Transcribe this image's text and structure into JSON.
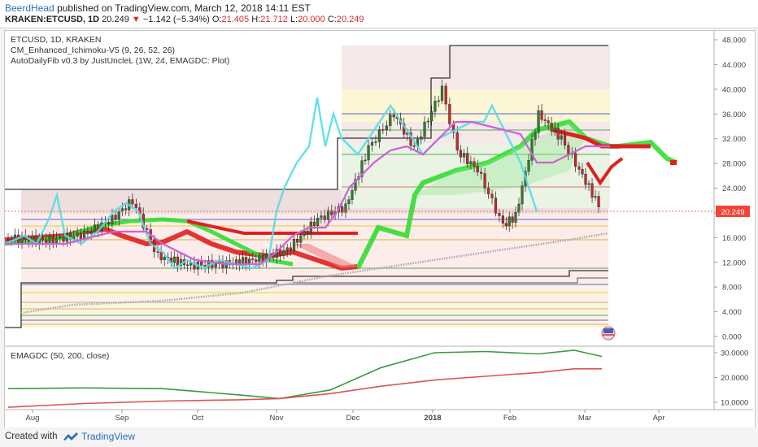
{
  "header": {
    "author": "BeerdHead",
    "published_text": "published on TradingView.com, March 12, 2018 14:11 EST",
    "symbol_line": {
      "symbol": "KRAKEN:ETCUSD, 1D",
      "last": "20.249",
      "change": "−1.142 (−5.34%)",
      "open_label": "O:",
      "open": "21.405",
      "high_label": "H:",
      "high": "21.712",
      "low_label": "L:",
      "low": "20.000",
      "close_label": "C:",
      "close": "20.249"
    }
  },
  "legend": {
    "line1": "ETCUSD, 1D, KRAKEN",
    "line2": "CM_Enhanced_Ichimoku-V5 (9, 26, 52, 26)",
    "line3": "AutoDailyFib v0.3 by JustUncleL (1W, 24, EMAGDC: Plot)",
    "sub_title": "EMAGDC (50, 200, close)"
  },
  "price_badge": "20.249",
  "footer": {
    "created": "Created with",
    "brand": "TradingView"
  },
  "colors": {
    "up_candle": "#2e7d32",
    "down_candle": "#c62828",
    "ema50": "#3b9a3b",
    "ema200": "#e05252",
    "cloud_green": "#33dd33",
    "cloud_red": "#e02020",
    "tenkan": "#55dde8",
    "kijun": "#d060d8",
    "hline": "#555555",
    "price_badge": "#f44336"
  },
  "chart_data": [
    {
      "type": "line",
      "title": "ETCUSD, 1D, KRAKEN",
      "x_ticks": [
        "Aug",
        "Sep",
        "Oct",
        "Nov",
        "Dec",
        "2018",
        "Feb",
        "Mar",
        "Apr"
      ],
      "y_ticks": [
        "48.000",
        "44.000",
        "40.000",
        "36.000",
        "32.000",
        "28.000",
        "24.000",
        "20.000",
        "16.000",
        "12.000",
        "8.000",
        "4.000",
        "0.000"
      ],
      "ylim": [
        0,
        48
      ],
      "series": [
        {
          "name": "ETCUSD",
          "x": [
            "Jul 21",
            "Aug 5",
            "Aug 20",
            "Aug 31",
            "Sep 8",
            "Sep 18",
            "Oct 1",
            "Oct 15",
            "Oct 28",
            "Nov 8",
            "Nov 20",
            "Dec 1",
            "Dec 10",
            "Dec 20",
            "Dec 28",
            "Jan 8",
            "Jan 14",
            "Jan 22",
            "Feb 1",
            "Feb 6",
            "Feb 15",
            "Feb 24",
            "Mar 3",
            "Mar 12"
          ],
          "values": [
            16.0,
            15.5,
            16.5,
            19.0,
            22.0,
            13.0,
            11.5,
            11.8,
            12.5,
            14.0,
            19.0,
            21.0,
            30.5,
            36.0,
            30.5,
            40.0,
            30.0,
            27.0,
            18.0,
            19.5,
            36.0,
            32.0,
            27.0,
            20.249
          ]
        }
      ]
    },
    {
      "type": "line",
      "title": "EMAGDC (50, 200, close)",
      "y_ticks": [
        "30.0000",
        "20.0000",
        "10.0000"
      ],
      "ylim": [
        7,
        32
      ],
      "x": [
        "Jul 21",
        "Aug 20",
        "Sep 20",
        "Oct 20",
        "Nov 5",
        "Nov 25",
        "Dec 15",
        "Jan 5",
        "Jan 25",
        "Feb 15",
        "Mar 1",
        "Mar 12"
      ],
      "series": [
        {
          "name": "EMA 50",
          "values": [
            15.5,
            15.8,
            15.5,
            13.0,
            11.5,
            15.0,
            24.0,
            30.0,
            30.5,
            29.5,
            31.0,
            28.5
          ]
        },
        {
          "name": "EMA 200",
          "values": [
            8.0,
            9.5,
            10.5,
            11.0,
            11.5,
            13.5,
            16.5,
            19.0,
            20.5,
            22.0,
            23.5,
            23.5
          ]
        }
      ]
    }
  ]
}
